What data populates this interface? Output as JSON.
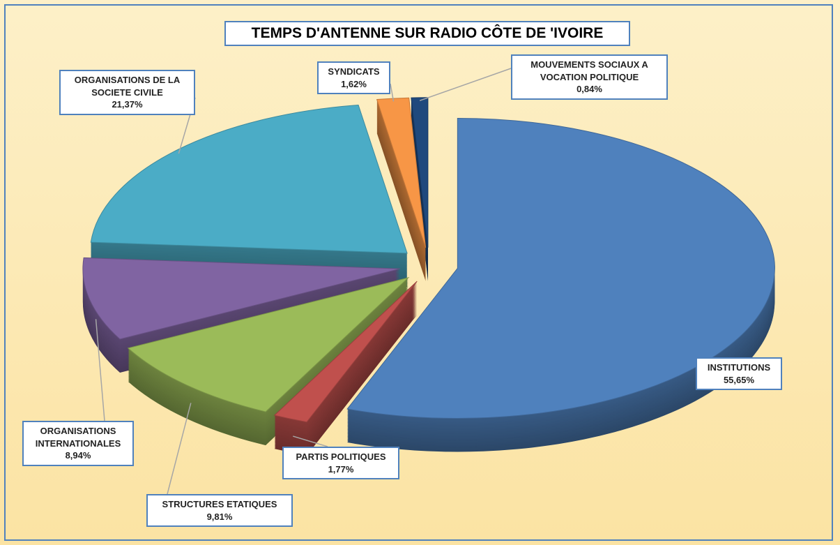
{
  "chart_data": {
    "type": "pie",
    "title": "TEMPS D'ANTENNE SUR RADIO CÔTE DE 'IVOIRE",
    "categories": [
      "INSTITUTIONS",
      "PARTIS POLITIQUES",
      "STRUCTURES ETATIQUES",
      "ORGANISATIONS INTERNATIONALES",
      "ORGANISATIONS DE LA SOCIETE CIVILE",
      "SYNDICATS",
      "MOUVEMENTS SOCIAUX A VOCATION POLITIQUE"
    ],
    "values": [
      55.65,
      1.77,
      9.81,
      8.94,
      21.37,
      1.62,
      0.84
    ],
    "value_labels": [
      "55,65%",
      "1,77%",
      "9,81%",
      "8,94%",
      "21,37%",
      "1,62%",
      "0,84%"
    ],
    "colors": [
      "#4f81bd",
      "#c0504d",
      "#9bbb59",
      "#8064a2",
      "#4bacc6",
      "#f79646",
      "#1f497d"
    ]
  }
}
